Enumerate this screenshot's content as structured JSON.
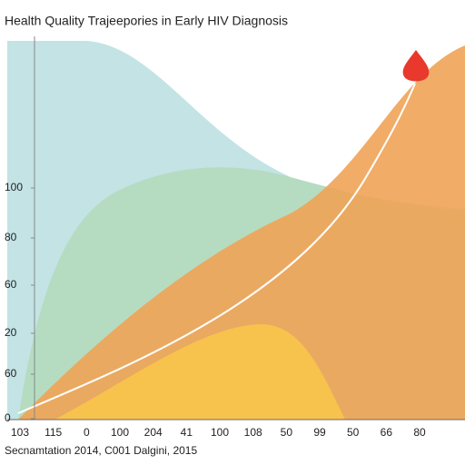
{
  "title": "Health Quality Trajeepories in Early HIV Diagnosis",
  "y_labels": [
    "100",
    "80",
    "60",
    "20",
    "60",
    "0"
  ],
  "x_labels": [
    "103",
    "115",
    "0",
    "100",
    "204",
    "41",
    "100",
    "108",
    "50",
    "99",
    "50",
    "66",
    "80"
  ],
  "footer": "Secnamtation 2014, C001 Dalgini, 2015"
}
